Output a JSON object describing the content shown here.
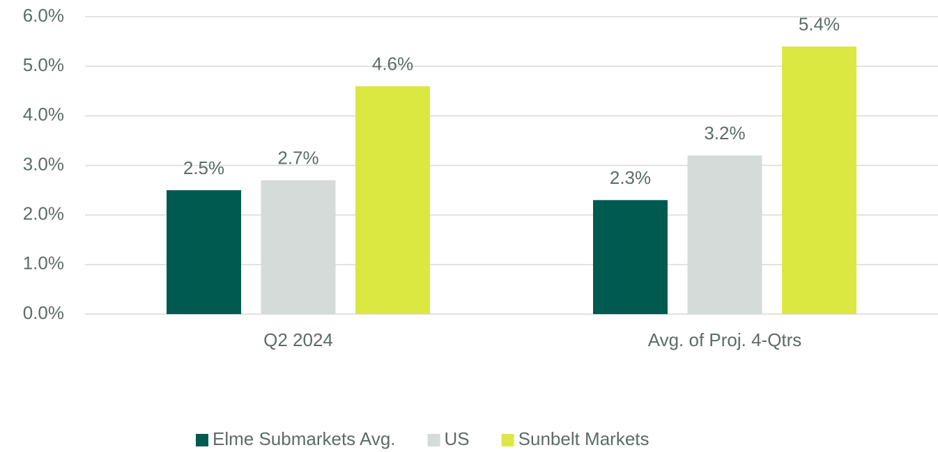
{
  "chart_data": {
    "type": "bar",
    "categories": [
      "Q2 2024",
      "Avg. of Proj. 4-Qtrs"
    ],
    "series": [
      {
        "name": "Elme Submarkets Avg.",
        "color": "#005a4f",
        "values": [
          2.5,
          2.3
        ],
        "value_labels": [
          "2.5%",
          "2.3%"
        ]
      },
      {
        "name": "US",
        "color": "#d5dbd8",
        "values": [
          2.7,
          3.2
        ],
        "value_labels": [
          "2.7%",
          "3.2%"
        ]
      },
      {
        "name": "Sunbelt Markets",
        "color": "#dce842",
        "values": [
          4.6,
          5.4
        ],
        "value_labels": [
          "4.6%",
          "5.4%"
        ]
      }
    ],
    "ylim": [
      0,
      6
    ],
    "yticks": [
      {
        "value": 0,
        "label": "0.0%"
      },
      {
        "value": 1,
        "label": "1.0%"
      },
      {
        "value": 2,
        "label": "2.0%"
      },
      {
        "value": 3,
        "label": "3.0%"
      },
      {
        "value": 4,
        "label": "4.0%"
      },
      {
        "value": 5,
        "label": "5.0%"
      },
      {
        "value": 6,
        "label": "6.0%"
      }
    ],
    "grid": true,
    "legend": "bottom"
  }
}
